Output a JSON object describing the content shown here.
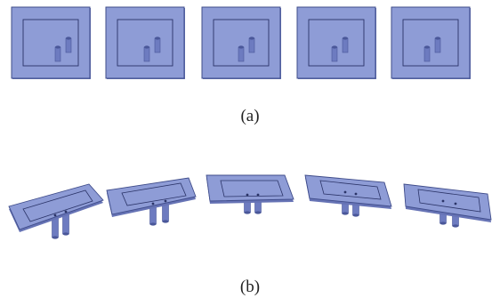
{
  "captions": {
    "a": "(a)",
    "b": "(b)"
  },
  "colors": {
    "board": "#8e9cd6",
    "board_edge": "#3f4c8a",
    "board_side": "#6673b5",
    "inner_line": "#2b3468",
    "pin": "#6d7bc0",
    "pin_dark": "#4a5799"
  },
  "row_a": {
    "count": 5,
    "description_icon": "square-patch-antenna-top-view-icon"
  },
  "row_b": {
    "count": 5,
    "description_icon": "tilted-patch-antenna-with-probes-icon"
  }
}
